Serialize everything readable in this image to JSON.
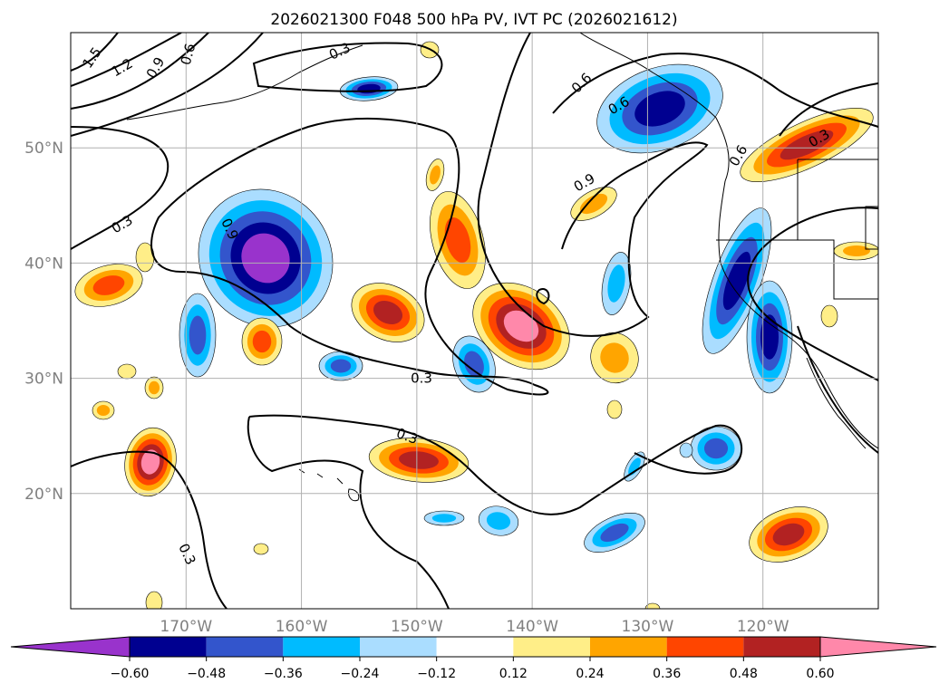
{
  "title": "2026021300 F048 500 hPa PV, IVT PC (2026021612)",
  "map": {
    "lon_range": [
      -180,
      -110
    ],
    "lat_range": [
      10,
      60
    ],
    "lat_ticks": [
      {
        "value": 50,
        "label": "50°N"
      },
      {
        "value": 40,
        "label": "40°N"
      },
      {
        "value": 30,
        "label": "30°N"
      },
      {
        "value": 20,
        "label": "20°N"
      }
    ],
    "lon_ticks": [
      {
        "value": -170,
        "label": "170°W"
      },
      {
        "value": -160,
        "label": "160°W"
      },
      {
        "value": -150,
        "label": "150°W"
      },
      {
        "value": -140,
        "label": "140°W"
      },
      {
        "value": -130,
        "label": "130°W"
      },
      {
        "value": -120,
        "label": "120°W"
      }
    ],
    "gridlines": true,
    "contour_labels": [
      "1.5",
      "1.2",
      "0.9",
      "0.6",
      "0.3",
      "0.6",
      "0.9",
      "0.6",
      "0.3",
      "0.3",
      "0.3",
      "0.3",
      "0.3",
      "0.6",
      "0.9"
    ]
  },
  "colorbar": {
    "ticks": [
      "−0.60",
      "−0.48",
      "−0.36",
      "−0.24",
      "−0.12",
      "0.12",
      "0.24",
      "0.36",
      "0.48",
      "0.60"
    ],
    "colors": [
      "#9933cc",
      "#000090",
      "#3355cc",
      "#00bbff",
      "#aaddff",
      "#ffffff",
      "#ffee88",
      "#ffa500",
      "#ff4500",
      "#b22222",
      "#ff88aa",
      "#ff88aa"
    ]
  },
  "colors": {
    "pos": [
      "#ffee88",
      "#ffa500",
      "#ff4500",
      "#b22222",
      "#ff88aa"
    ],
    "neg": [
      "#aaddff",
      "#00bbff",
      "#3355cc",
      "#000090",
      "#9933cc"
    ]
  }
}
